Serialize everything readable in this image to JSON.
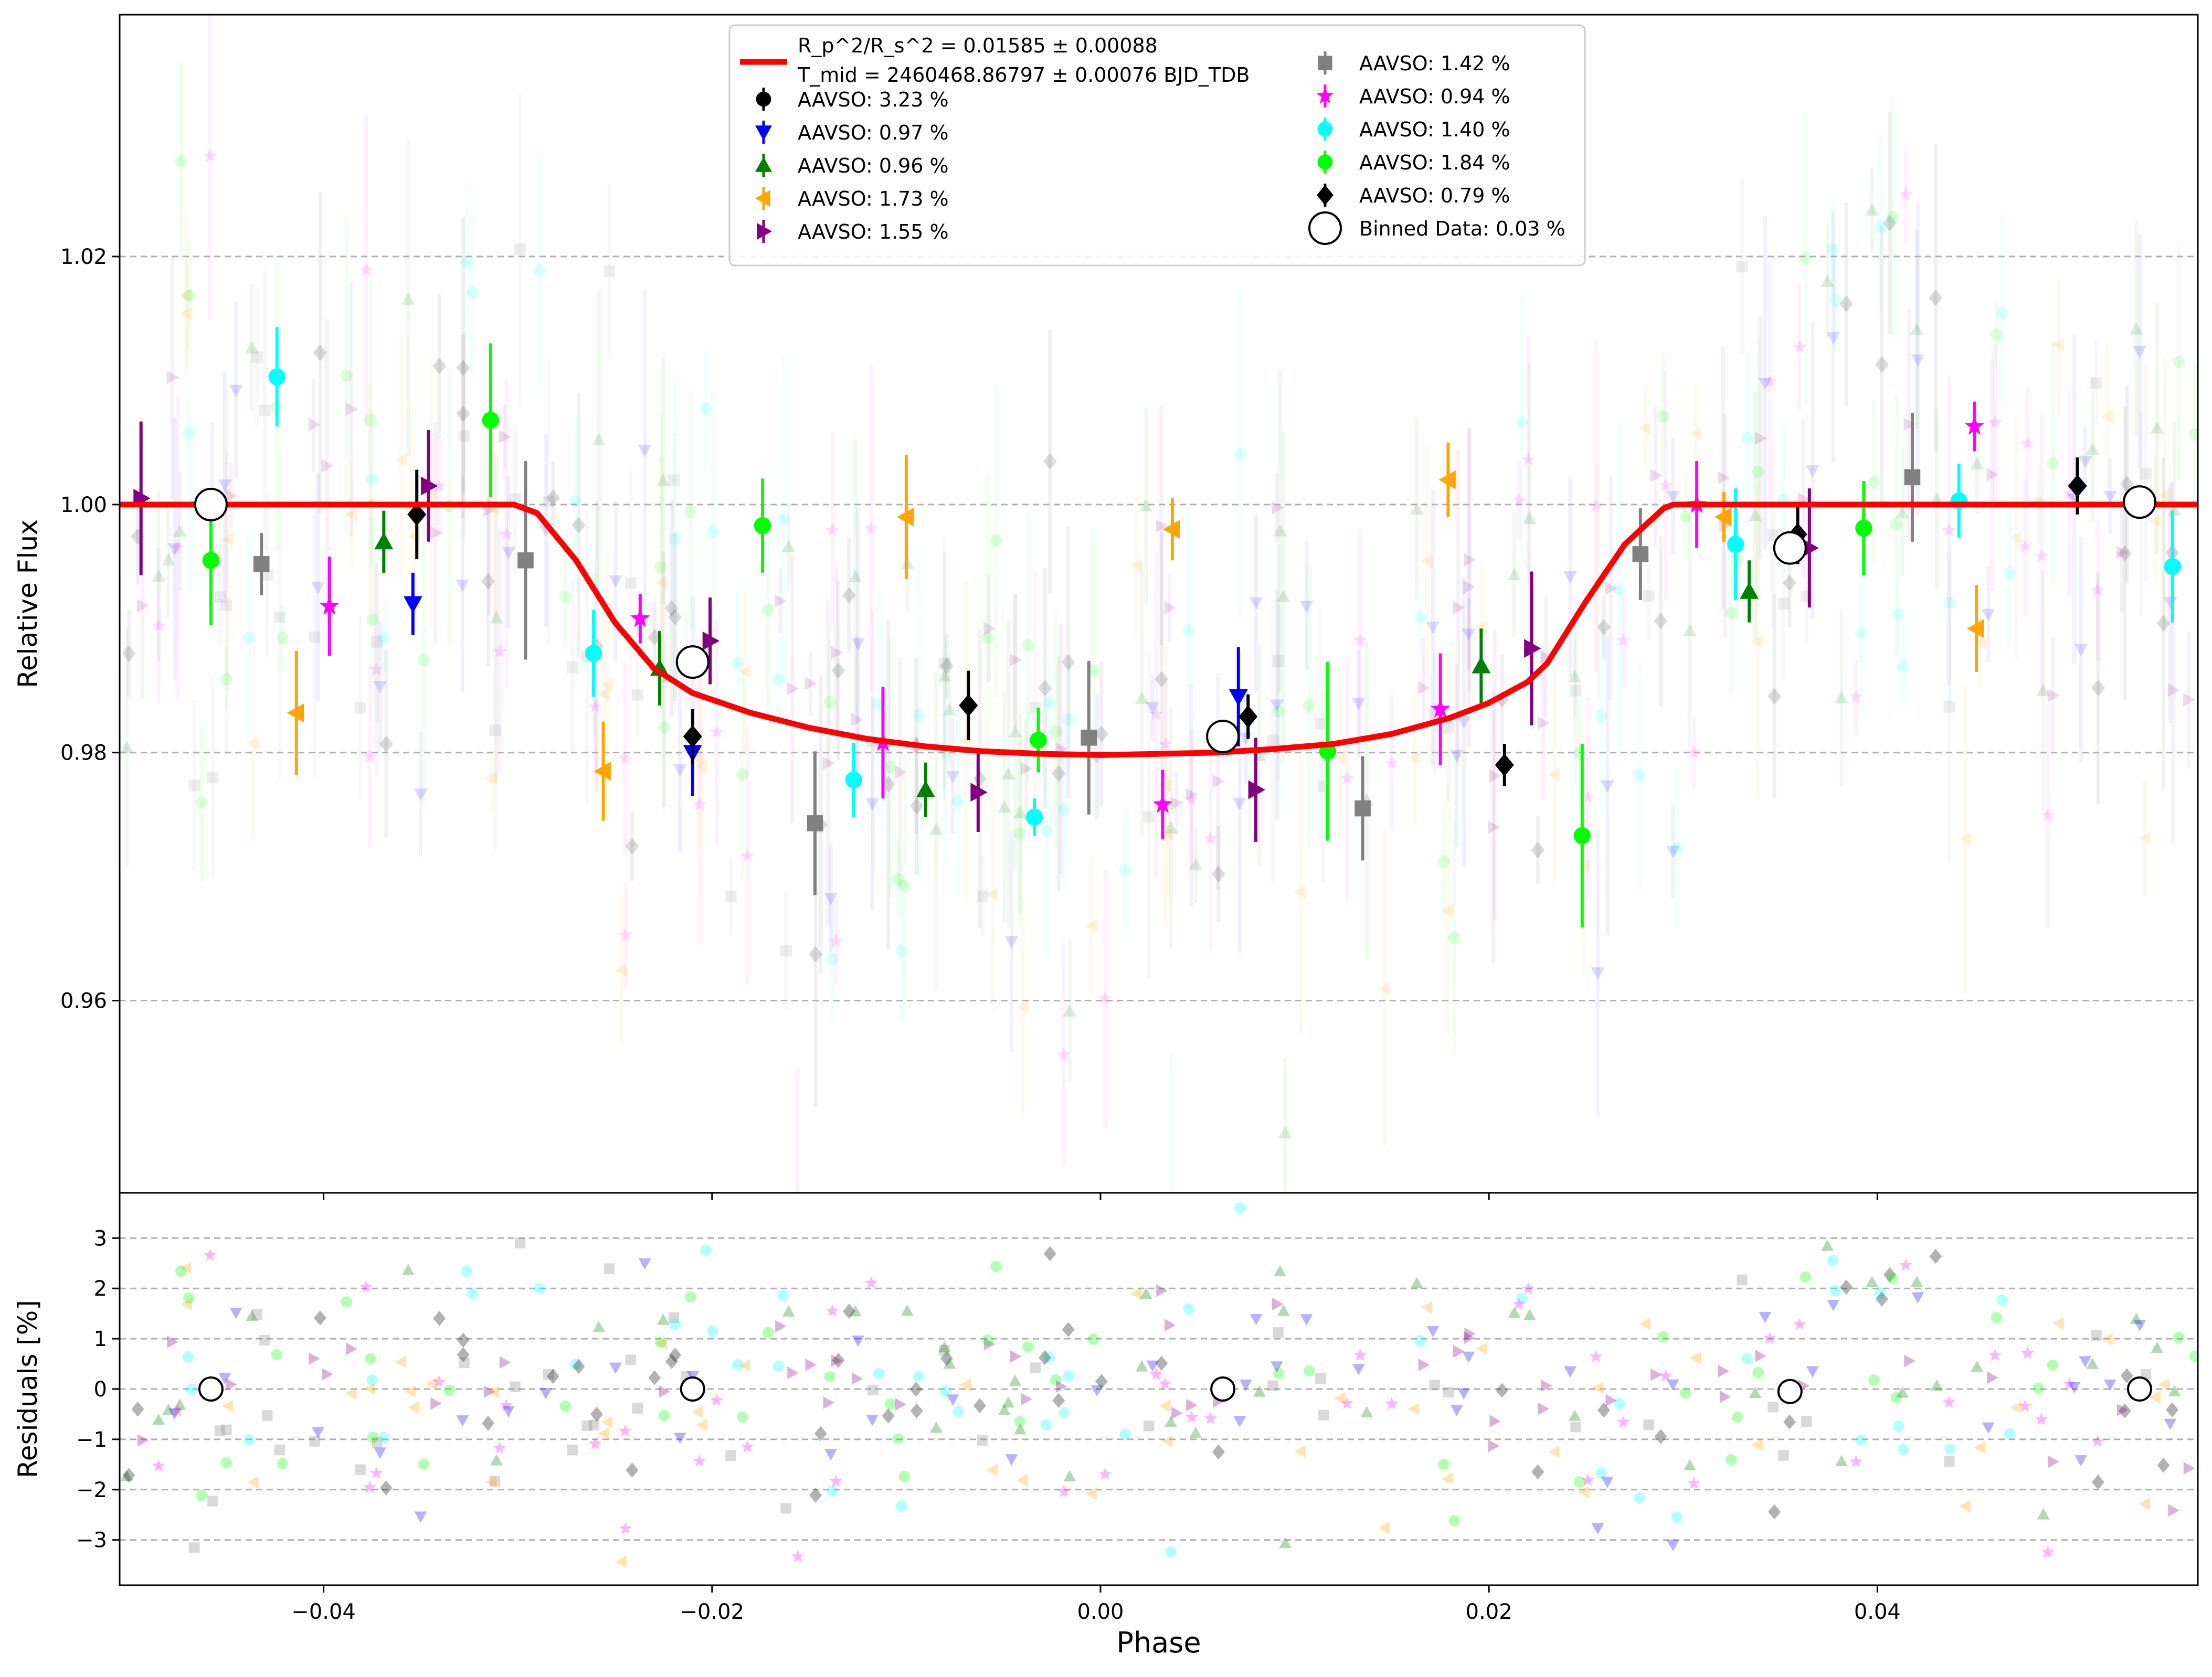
{
  "chart_data": [
    {
      "type": "scatter",
      "panel": "main",
      "ylabel": "Relative Flux",
      "xlim": [
        -0.0505,
        0.0565
      ],
      "ylim": [
        0.9445,
        1.0395
      ],
      "xticks": [
        -0.04,
        -0.02,
        0.0,
        0.02,
        0.04
      ],
      "xtick_labels": [
        "−0.04",
        "−0.02",
        "0.00",
        "0.02",
        "0.04"
      ],
      "yticks": [
        0.96,
        0.98,
        1.0,
        1.02
      ],
      "ytick_labels": [
        "0.96",
        "0.98",
        "1.00",
        "1.02"
      ],
      "grid": "y-dashed",
      "legend_position": "top-center",
      "model": {
        "label_line1": "R_p^2/R_s^2 = 0.01585 ± 0.00088",
        "label_line2": "T_mid = 2460468.86797 ± 0.00076 BJD_TDB",
        "color": "#ff0000",
        "x": [
          -0.0505,
          -0.0302,
          -0.029,
          -0.027,
          -0.025,
          -0.023,
          -0.021,
          -0.018,
          -0.015,
          -0.012,
          -0.009,
          -0.006,
          -0.003,
          0.0,
          0.003,
          0.006,
          0.009,
          0.012,
          0.015,
          0.018,
          0.02,
          0.022,
          0.023,
          0.025,
          0.027,
          0.029,
          0.0295,
          0.0565
        ],
        "y": [
          1.0,
          1.0,
          0.9993,
          0.9955,
          0.9905,
          0.9868,
          0.9848,
          0.9832,
          0.982,
          0.9811,
          0.9805,
          0.9801,
          0.9799,
          0.9798,
          0.9799,
          0.98,
          0.9803,
          0.9807,
          0.9815,
          0.9828,
          0.984,
          0.9857,
          0.9872,
          0.9922,
          0.9968,
          0.9997,
          1.0,
          1.0
        ]
      },
      "series": [
        {
          "name": "AAVSO: 3.23 %",
          "marker": "circle",
          "color": "#000000",
          "x": [],
          "y": [],
          "err": []
        },
        {
          "name": "AAVSO: 0.97 %",
          "marker": "triangle-down",
          "color": "#0000ff",
          "x": [
            -0.0354,
            -0.021,
            0.0071
          ],
          "y": [
            0.992,
            0.98,
            0.9845
          ],
          "err": [
            0.0025,
            0.0035,
            0.004
          ]
        },
        {
          "name": "AAVSO: 0.96 %",
          "marker": "triangle-up",
          "color": "#008000",
          "x": [
            -0.0369,
            -0.0227,
            -0.009,
            0.0196,
            0.0334
          ],
          "y": [
            0.997,
            0.9868,
            0.977,
            0.987,
            0.993
          ],
          "err": [
            0.0025,
            0.003,
            0.0022,
            0.003,
            0.0025
          ]
        },
        {
          "name": "AAVSO: 1.73 %",
          "marker": "triangle-left",
          "color": "#ffa500",
          "x": [
            -0.0414,
            -0.0256,
            -0.01,
            0.0037,
            0.0179,
            0.0321,
            0.0451
          ],
          "y": [
            0.9832,
            0.9785,
            0.999,
            0.998,
            1.002,
            0.999,
            0.99
          ],
          "err": [
            0.005,
            0.004,
            0.005,
            0.0025,
            0.003,
            0.002,
            0.0035
          ]
        },
        {
          "name": "AAVSO: 1.55 %",
          "marker": "triangle-right",
          "color": "#800080",
          "x": [
            -0.0494,
            -0.0346,
            -0.0201,
            -0.0063,
            0.008,
            0.0222,
            0.0365
          ],
          "y": [
            1.0005,
            1.0015,
            0.989,
            0.9768,
            0.977,
            0.9884,
            0.9965
          ],
          "err": [
            0.0062,
            0.0045,
            0.0035,
            0.0032,
            0.0042,
            0.0062,
            0.0048
          ]
        },
        {
          "name": "AAVSO: 1.42 %",
          "marker": "square",
          "color": "#808080",
          "x": [
            -0.0432,
            -0.0296,
            -0.0147,
            -0.0006,
            0.0135,
            0.0278,
            0.0418
          ],
          "y": [
            0.9952,
            0.9955,
            0.9743,
            0.9812,
            0.9755,
            0.996,
            1.0022
          ],
          "err": [
            0.0025,
            0.008,
            0.0058,
            0.0062,
            0.0042,
            0.0037,
            0.0052
          ]
        },
        {
          "name": "AAVSO: 0.94 %",
          "marker": "star",
          "color": "#ff00ff",
          "x": [
            -0.0397,
            -0.0237,
            -0.0112,
            0.0032,
            0.0175,
            0.0307,
            0.045
          ],
          "y": [
            0.9918,
            0.9908,
            0.9808,
            0.9758,
            0.9835,
            1.0,
            1.0063
          ],
          "err": [
            0.004,
            0.002,
            0.0045,
            0.0028,
            0.0045,
            0.0035,
            0.002
          ]
        },
        {
          "name": "AAVSO: 1.40 %",
          "marker": "circle",
          "color": "#00ffff",
          "x": [
            -0.0424,
            -0.0261,
            -0.0127,
            -0.0034,
            0.0327,
            0.0442,
            0.0552
          ],
          "y": [
            1.0103,
            0.988,
            0.9778,
            0.9748,
            0.9968,
            1.0003,
            0.995
          ],
          "err": [
            0.004,
            0.0035,
            0.003,
            0.0015,
            0.0045,
            0.003,
            0.0045
          ]
        },
        {
          "name": "AAVSO: 1.84 %",
          "marker": "circle",
          "color": "#00ff00",
          "x": [
            -0.0458,
            -0.0314,
            -0.0174,
            -0.0032,
            0.0117,
            0.0248,
            0.0393
          ],
          "y": [
            0.9955,
            1.0068,
            0.9983,
            0.981,
            0.9801,
            0.9733,
            0.9981
          ],
          "err": [
            0.0052,
            0.0062,
            0.0038,
            0.0026,
            0.0072,
            0.0074,
            0.0038
          ]
        },
        {
          "name": "AAVSO: 0.79 %",
          "marker": "diamond",
          "color": "#000000",
          "x": [
            -0.0352,
            -0.021,
            -0.0068,
            0.0076,
            0.0208,
            0.0359,
            0.0503
          ],
          "y": [
            0.9992,
            0.9813,
            0.9838,
            0.9829,
            0.979,
            0.9976,
            1.0015
          ],
          "err": [
            0.0036,
            0.0022,
            0.0028,
            0.0018,
            0.0017,
            0.0024,
            0.0023
          ]
        },
        {
          "name": "Binned Data: 0.03 %",
          "marker": "open-circle",
          "color": "#000000",
          "x": [
            -0.0458,
            -0.021,
            0.0063,
            0.0355,
            0.0535
          ],
          "y": [
            1.0,
            0.9873,
            0.9813,
            0.9965,
            1.0002
          ],
          "err": [
            0.0005,
            0.0005,
            0.0005,
            0.0005,
            0.0005
          ]
        }
      ],
      "legend_col1": [
        "model",
        "AAVSO: 3.23 %",
        "AAVSO: 0.97 %",
        "AAVSO: 0.96 %",
        "AAVSO: 1.73 %",
        "AAVSO: 1.55 %"
      ],
      "legend_col2": [
        "AAVSO: 1.42 %",
        "AAVSO: 0.94 %",
        "AAVSO: 1.40 %",
        "AAVSO: 1.84 %",
        "AAVSO: 0.79 %",
        "Binned Data: 0.03 %"
      ]
    },
    {
      "type": "scatter",
      "panel": "residuals",
      "xlabel": "Phase",
      "ylabel": "Residuals [%]",
      "xlim": [
        -0.0505,
        0.0565
      ],
      "ylim": [
        -3.9,
        3.9
      ],
      "xticks": [
        -0.04,
        -0.02,
        0.0,
        0.02,
        0.04
      ],
      "xtick_labels": [
        "−0.04",
        "−0.02",
        "0.00",
        "0.02",
        "0.04"
      ],
      "yticks": [
        -3,
        -2,
        -1,
        0,
        1,
        2,
        3
      ],
      "ytick_labels": [
        "−3",
        "−2",
        "−1",
        "0",
        "1",
        "2",
        "3"
      ],
      "grid": "y-dashed",
      "binned": {
        "x": [
          -0.0458,
          -0.021,
          0.0063,
          0.0355,
          0.0535
        ],
        "y": [
          0.0,
          0.0,
          0.0,
          -0.05,
          0.0
        ]
      }
    }
  ],
  "colors": {
    "model": "#ff0000",
    "grid": "#b0b0b0",
    "axis": "#000000"
  }
}
